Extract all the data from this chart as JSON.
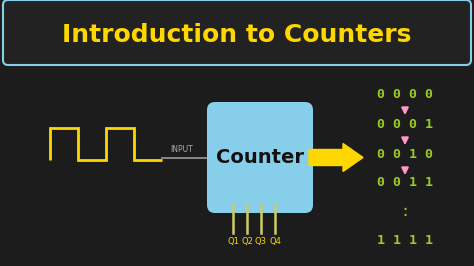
{
  "bg_color": "#1c1c1c",
  "title": "Introduction to Counters",
  "title_color": "#FFD700",
  "title_border_color": "#87CEEB",
  "title_bg": "#222222",
  "counter_box_color": "#87CEEB",
  "counter_text": "Counter",
  "counter_text_color": "#111111",
  "input_label": "INPUT",
  "input_label_color": "#aaaaaa",
  "arrow_color": "#FFD700",
  "signal_color": "#FFD700",
  "q_labels": [
    "Q1",
    "Q2",
    "Q3",
    "Q4"
  ],
  "q_label_color": "#FFD700",
  "binary_rows": [
    "0 0 0 0",
    "0 0 0 1",
    "0 0 1 0",
    "0 0 1 1",
    "1 1 1 1"
  ],
  "binary_color": "#99CC22",
  "arrow_down_color": "#FF99CC",
  "dots": ":"
}
